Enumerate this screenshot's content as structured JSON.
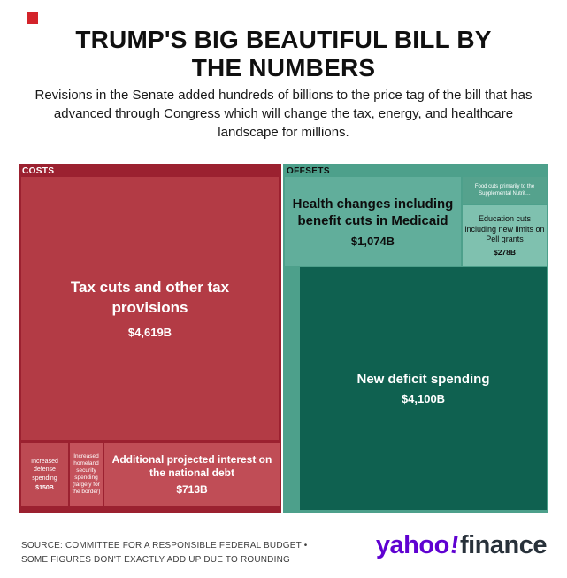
{
  "header": {
    "title_lines": [
      "TRUMP'S BIG BEAUTIFUL BILL BY",
      "THE NUMBERS"
    ],
    "subtitle": "Revisions in the Senate added hundreds of billions to the price tag of the bill that has advanced through Congress which will change the tax, energy, and healthcare landscape for millions."
  },
  "costs": {
    "header": "COSTS",
    "tax": {
      "label": "Tax cuts and other tax provisions",
      "value": "$4,619B"
    },
    "defense": {
      "label": "Increased defense spending",
      "value": "$150B"
    },
    "homeland": {
      "label": "Increased homeland security spending (largely for the border)"
    },
    "interest": {
      "label": "Additional projected interest on the national debt",
      "value": "$713B"
    }
  },
  "offsets": {
    "header": "OFFSETS",
    "health": {
      "label": "Health changes including benefit cuts in Medicaid",
      "value": "$1,074B"
    },
    "food": {
      "label": "Food cuts primarily to the Supplemental Nutrit…"
    },
    "education": {
      "label": "Education cuts including new limits on Pell grants",
      "value": "$278B"
    },
    "deficit": {
      "label": "New deficit spending",
      "value": "$4,100B"
    }
  },
  "footer": {
    "source_line1": "SOURCE: COMMITTEE FOR A RESPONSIBLE FEDERAL BUDGET •",
    "source_line2": "SOME FIGURES DON'T EXACTLY ADD UP DUE TO ROUNDING",
    "logo": {
      "yahoo": "yahoo",
      "bang": "!",
      "finance": "finance"
    }
  },
  "colors": {
    "accent_red": "#d3232a",
    "costs_panel": "#9b2130",
    "costs_block": "#b33b45",
    "offsets_panel": "#4da08b",
    "offsets_deficit_block": "#0f6150",
    "yahoo_purple": "#5f01d1"
  },
  "chart_data": {
    "type": "treemap",
    "title": "TRUMP'S BIG BEAUTIFUL BILL BY THE NUMBERS",
    "subtitle": "Revisions in the Senate added hundreds of billions to the price tag of the bill that has advanced through Congress which will change the tax, energy, and healthcare landscape for millions.",
    "unit": "billions USD",
    "groups": [
      {
        "name": "COSTS",
        "items": [
          {
            "label": "Tax cuts and other tax provisions",
            "value": 4619,
            "value_label": "$4,619B"
          },
          {
            "label": "Increased defense spending",
            "value": 150,
            "value_label": "$150B"
          },
          {
            "label": "Increased homeland security spending (largely for the border)",
            "value": null,
            "value_label": ""
          },
          {
            "label": "Additional projected interest on the national debt",
            "value": 713,
            "value_label": "$713B"
          }
        ]
      },
      {
        "name": "OFFSETS",
        "items": [
          {
            "label": "Health changes including benefit cuts in Medicaid",
            "value": 1074,
            "value_label": "$1,074B"
          },
          {
            "label": "Food cuts primarily to the Supplemental Nutrit…",
            "value": null,
            "value_label": ""
          },
          {
            "label": "Education cuts including new limits on Pell grants",
            "value": 278,
            "value_label": "$278B"
          },
          {
            "label": "New deficit spending",
            "value": 4100,
            "value_label": "$4,100B"
          }
        ]
      }
    ],
    "source": "SOURCE: COMMITTEE FOR A RESPONSIBLE FEDERAL BUDGET • SOME FIGURES DON'T EXACTLY ADD UP DUE TO ROUNDING"
  }
}
